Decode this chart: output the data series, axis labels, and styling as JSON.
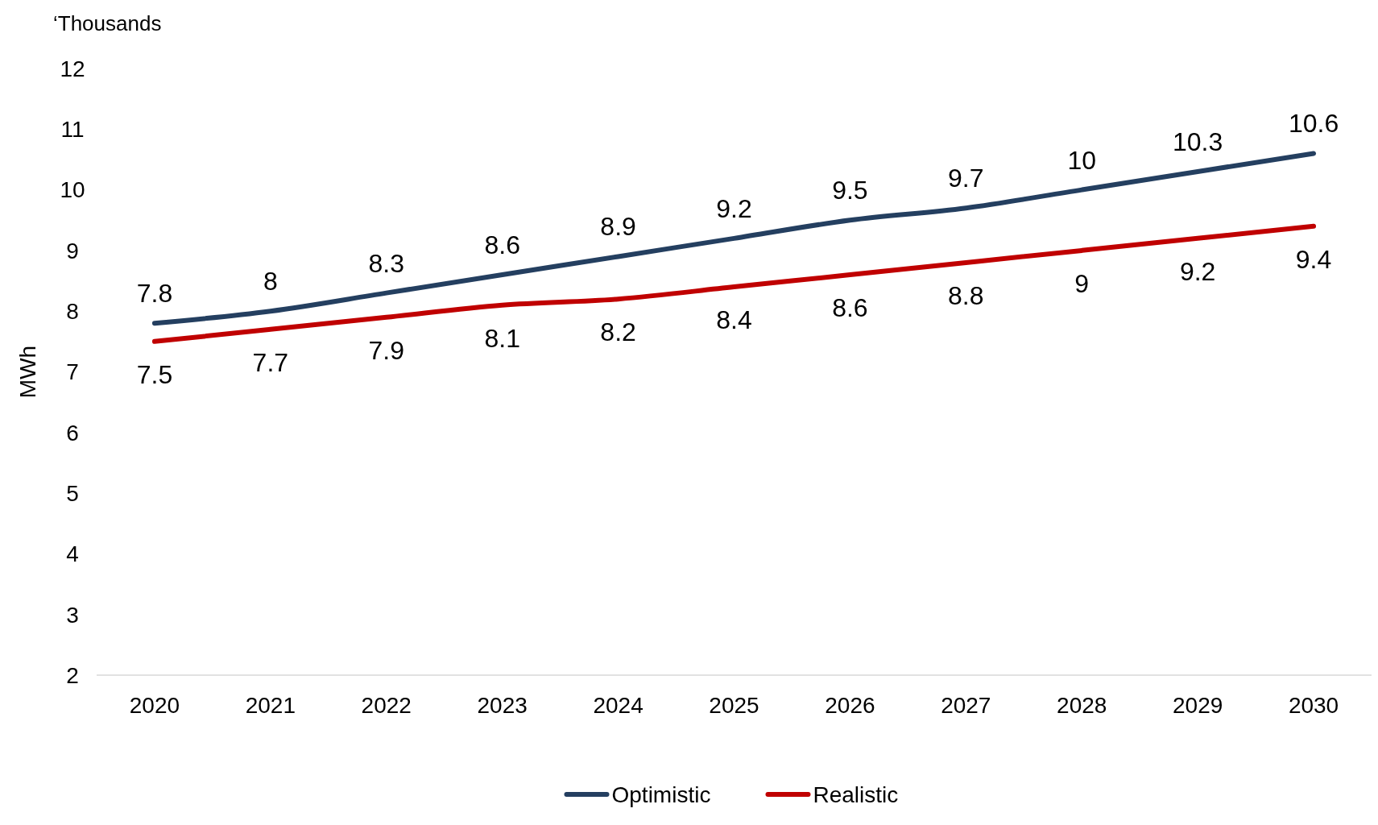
{
  "chart_data": {
    "type": "line",
    "ylabel": "MWh",
    "annotations": [
      "‘Thousands"
    ],
    "categories": [
      "2020",
      "2021",
      "2022",
      "2023",
      "2024",
      "2025",
      "2026",
      "2027",
      "2028",
      "2029",
      "2030"
    ],
    "series": [
      {
        "name": "Optimistic",
        "color": "#243f60",
        "values": [
          7.8,
          8,
          8.3,
          8.6,
          8.9,
          9.2,
          9.5,
          9.7,
          10,
          10.3,
          10.6
        ]
      },
      {
        "name": "Realistic",
        "color": "#c00000",
        "values": [
          7.5,
          7.7,
          7.9,
          8.1,
          8.2,
          8.4,
          8.6,
          8.8,
          9,
          9.2,
          9.4
        ]
      }
    ],
    "ylim": [
      2,
      12
    ],
    "yticks": [
      2,
      3,
      4,
      5,
      6,
      7,
      8,
      9,
      10,
      11,
      12
    ],
    "grid": false,
    "legend": "bottom",
    "data_labels": true,
    "marker": "none",
    "line_style": "solid"
  }
}
